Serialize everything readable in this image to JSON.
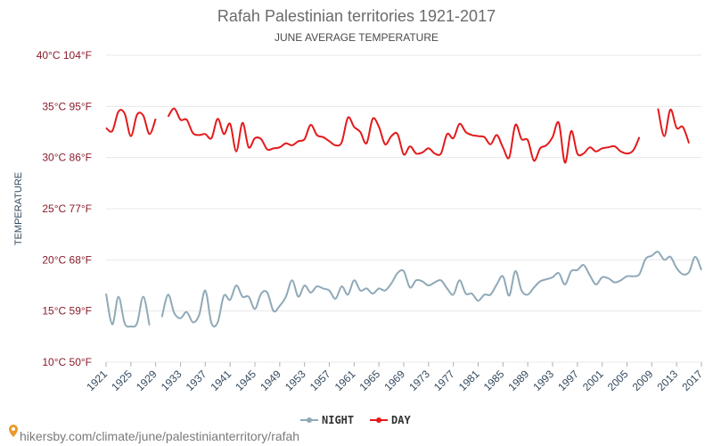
{
  "chart_data": {
    "type": "line",
    "title": "Rafah Palestinian territories 1921-2017",
    "subtitle": "JUNE AVERAGE TEMPERATURE",
    "ylabel": "TEMPERATURE",
    "xlabel": "",
    "ylim": [
      10,
      40
    ],
    "xlim": [
      1921,
      2017
    ],
    "ytick_values": [
      10,
      15,
      20,
      25,
      30,
      35,
      40
    ],
    "ytick_labels": [
      "10°C 50°F",
      "15°C 59°F",
      "20°C 68°F",
      "25°C 77°F",
      "30°C 86°F",
      "35°C 95°F",
      "40°C 104°F"
    ],
    "xtick_labels": [
      "1921",
      "1925",
      "1929",
      "1933",
      "1937",
      "1941",
      "1945",
      "1949",
      "1953",
      "1957",
      "1961",
      "1965",
      "1969",
      "1973",
      "1977",
      "1981",
      "1985",
      "1989",
      "1993",
      "1997",
      "2001",
      "2005",
      "2009",
      "2013",
      "2017"
    ],
    "grid": true,
    "legend_position": "bottom-center",
    "series": [
      {
        "name": "NIGHT",
        "color": "#8fa9b8",
        "x": [
          1921,
          1922,
          1923,
          1924,
          1925,
          1926,
          1927,
          1928,
          null,
          1930,
          1931,
          1932,
          1933,
          1934,
          1935,
          1936,
          1937,
          1938,
          1939,
          1940,
          1941,
          1942,
          1943,
          1944,
          1945,
          1946,
          1947,
          1948,
          1949,
          1950,
          1951,
          1952,
          1953,
          1954,
          1955,
          1956,
          1957,
          1958,
          1959,
          1960,
          1961,
          1962,
          1963,
          1964,
          1965,
          1966,
          1967,
          1968,
          1969,
          1970,
          1971,
          1972,
          1973,
          1974,
          1975,
          1976,
          1977,
          1978,
          1979,
          1980,
          1981,
          1982,
          1983,
          1984,
          1985,
          1986,
          1987,
          1988,
          1989,
          1990,
          1991,
          1992,
          1993,
          1994,
          1995,
          1996,
          1997,
          1998,
          1999,
          2000,
          2001,
          2002,
          2003,
          2004,
          2005,
          2006,
          2007,
          2008,
          2009,
          2010,
          2011,
          2012,
          2013,
          2014,
          2015,
          2016,
          2017
        ],
        "values": [
          16.7,
          13.7,
          16.4,
          13.8,
          13.5,
          13.8,
          16.4,
          13.6,
          null,
          14.4,
          16.6,
          14.8,
          14.3,
          14.9,
          13.9,
          14.6,
          17.0,
          13.8,
          13.9,
          16.5,
          16.1,
          17.5,
          16.4,
          16.4,
          15.2,
          16.7,
          16.8,
          15.0,
          15.5,
          16.4,
          18.0,
          16.4,
          17.5,
          16.8,
          17.4,
          17.2,
          17.0,
          16.2,
          17.4,
          16.6,
          18.0,
          17.0,
          17.2,
          16.7,
          17.2,
          17.0,
          17.7,
          18.7,
          18.9,
          17.3,
          18.0,
          17.9,
          17.5,
          17.8,
          18.0,
          17.2,
          16.6,
          18.0,
          16.7,
          16.7,
          16.0,
          16.6,
          16.6,
          17.6,
          18.4,
          16.5,
          18.9,
          17.0,
          16.6,
          17.3,
          17.9,
          18.1,
          18.3,
          18.7,
          17.6,
          18.9,
          19.0,
          19.5,
          18.5,
          17.6,
          18.3,
          18.2,
          17.8,
          18.0,
          18.4,
          18.4,
          18.6,
          20.1,
          20.4,
          20.8,
          20.0,
          20.3,
          19.2,
          18.6,
          18.8,
          20.3,
          19.0
        ]
      },
      {
        "name": "DAY",
        "color": "#e31a1c",
        "x": [
          1921,
          1922,
          1923,
          1924,
          1925,
          1926,
          1927,
          1928,
          1929,
          null,
          1931,
          1932,
          1933,
          1934,
          1935,
          1936,
          1937,
          1938,
          1939,
          1940,
          1941,
          1942,
          1943,
          1944,
          1945,
          1946,
          1947,
          1948,
          1949,
          1950,
          1951,
          1952,
          1953,
          1954,
          1955,
          1956,
          1957,
          1958,
          1959,
          1960,
          1961,
          1962,
          1963,
          1964,
          1965,
          1966,
          1967,
          1968,
          1969,
          1970,
          1971,
          1972,
          1973,
          1974,
          1975,
          1976,
          1977,
          1978,
          1979,
          1980,
          1981,
          1982,
          1983,
          1984,
          1985,
          1986,
          1987,
          1988,
          1989,
          1990,
          1991,
          1992,
          1993,
          1994,
          1995,
          1996,
          1997,
          1998,
          1999,
          2000,
          2001,
          2002,
          2003,
          2004,
          2005,
          2006,
          2007,
          null,
          2010,
          2011,
          2012,
          2013,
          2014,
          2015
        ],
        "values": [
          32.9,
          32.6,
          34.5,
          34.3,
          32.1,
          34.2,
          34.1,
          32.3,
          33.8,
          null,
          34.0,
          34.8,
          33.7,
          33.7,
          32.4,
          32.2,
          32.3,
          31.9,
          33.8,
          32.3,
          33.3,
          30.6,
          33.4,
          31.0,
          31.9,
          31.8,
          30.8,
          30.9,
          31.0,
          31.4,
          31.2,
          31.6,
          31.8,
          33.2,
          32.2,
          32.0,
          31.6,
          31.2,
          31.5,
          33.9,
          33.0,
          32.5,
          31.4,
          33.8,
          33.0,
          31.3,
          32.1,
          32.3,
          30.3,
          31.1,
          30.4,
          30.5,
          30.9,
          30.4,
          30.4,
          32.3,
          31.9,
          33.3,
          32.5,
          32.2,
          32.1,
          32.0,
          31.3,
          32.2,
          31.0,
          30.0,
          33.2,
          31.8,
          31.7,
          29.7,
          30.9,
          31.2,
          32.0,
          33.4,
          29.5,
          32.6,
          30.4,
          30.4,
          31.0,
          30.6,
          30.9,
          31.0,
          31.1,
          30.6,
          30.4,
          30.7,
          32.0,
          null,
          34.8,
          32.1,
          34.7,
          32.9,
          33.0,
          31.4
        ]
      }
    ]
  },
  "source": "hikersby.com/climate/june/palestinianterritory/rafah"
}
